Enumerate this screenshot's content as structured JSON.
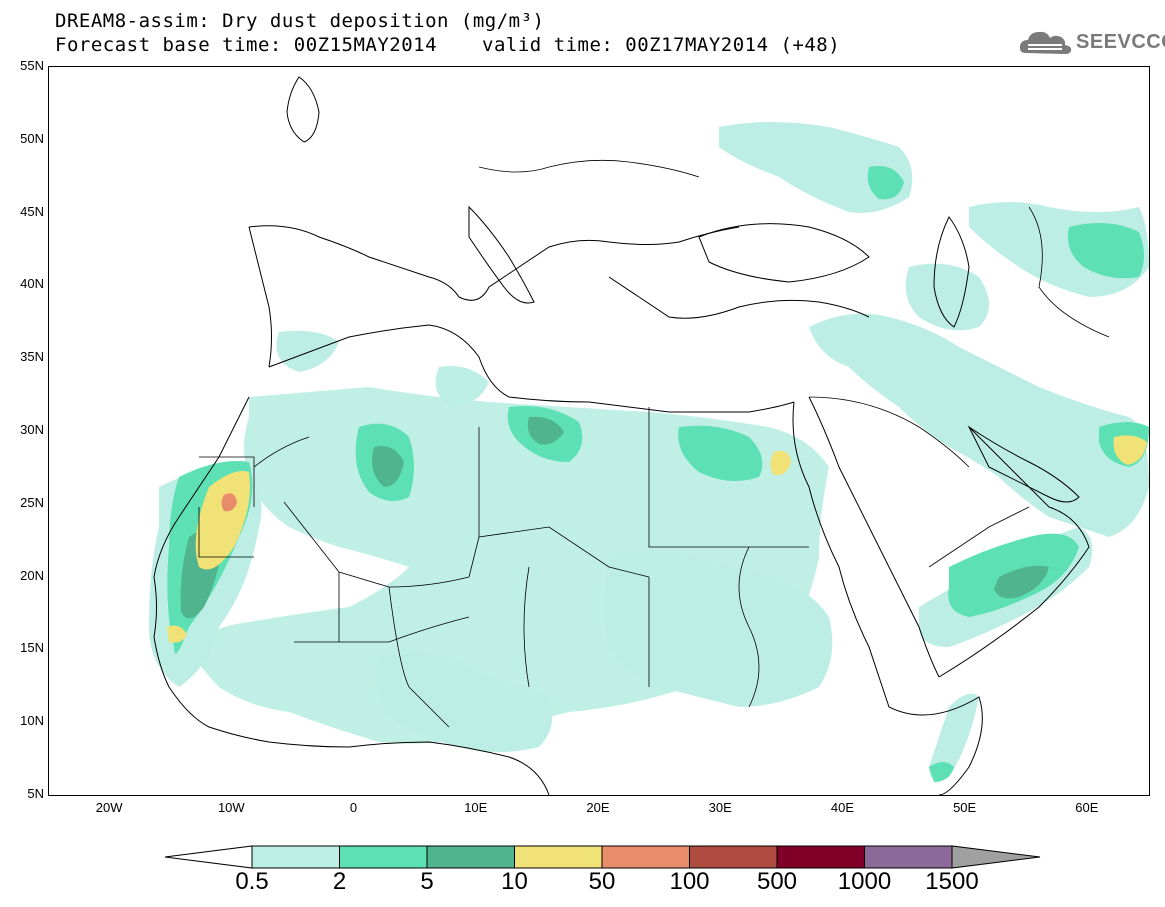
{
  "header": {
    "title_line1": "DREAM8-assim: Dry dust deposition (mg/m³)",
    "title_line2_left": "Forecast base time: 00Z15MAY2014",
    "title_line2_right": "valid time: 00Z17MAY2014 (+48)"
  },
  "logo": {
    "text": "SEEVCCC",
    "icon": "cloud-icon"
  },
  "map": {
    "projection": "lat-lon",
    "lon_range": [
      -25,
      65
    ],
    "lat_range": [
      5,
      55
    ],
    "lat_labels": [
      "55N",
      "50N",
      "45N",
      "40N",
      "35N",
      "30N",
      "25N",
      "20N",
      "15N",
      "10N",
      "5N"
    ],
    "lon_labels": [
      "20W",
      "10W",
      "0",
      "10E",
      "20E",
      "30E",
      "40E",
      "50E",
      "60E"
    ]
  },
  "legend": {
    "labels": [
      "0.5",
      "2",
      "5",
      "10",
      "50",
      "100",
      "500",
      "1000",
      "1500"
    ],
    "colors": [
      "#bdeee5",
      "#5ce0b4",
      "#50b48e",
      "#f1e278",
      "#e98c6c",
      "#ae4d3f",
      "#800029",
      "#8b6a9a",
      "#a0a0a0"
    ],
    "below_color": "#ffffff",
    "above_color": "#a0a0a0"
  },
  "colors": {
    "dust_0_5": "#bdeee5",
    "dust_2": "#5ce0b4",
    "dust_5": "#50b48e",
    "dust_10": "#f1e278",
    "dust_50": "#e98c6c"
  }
}
